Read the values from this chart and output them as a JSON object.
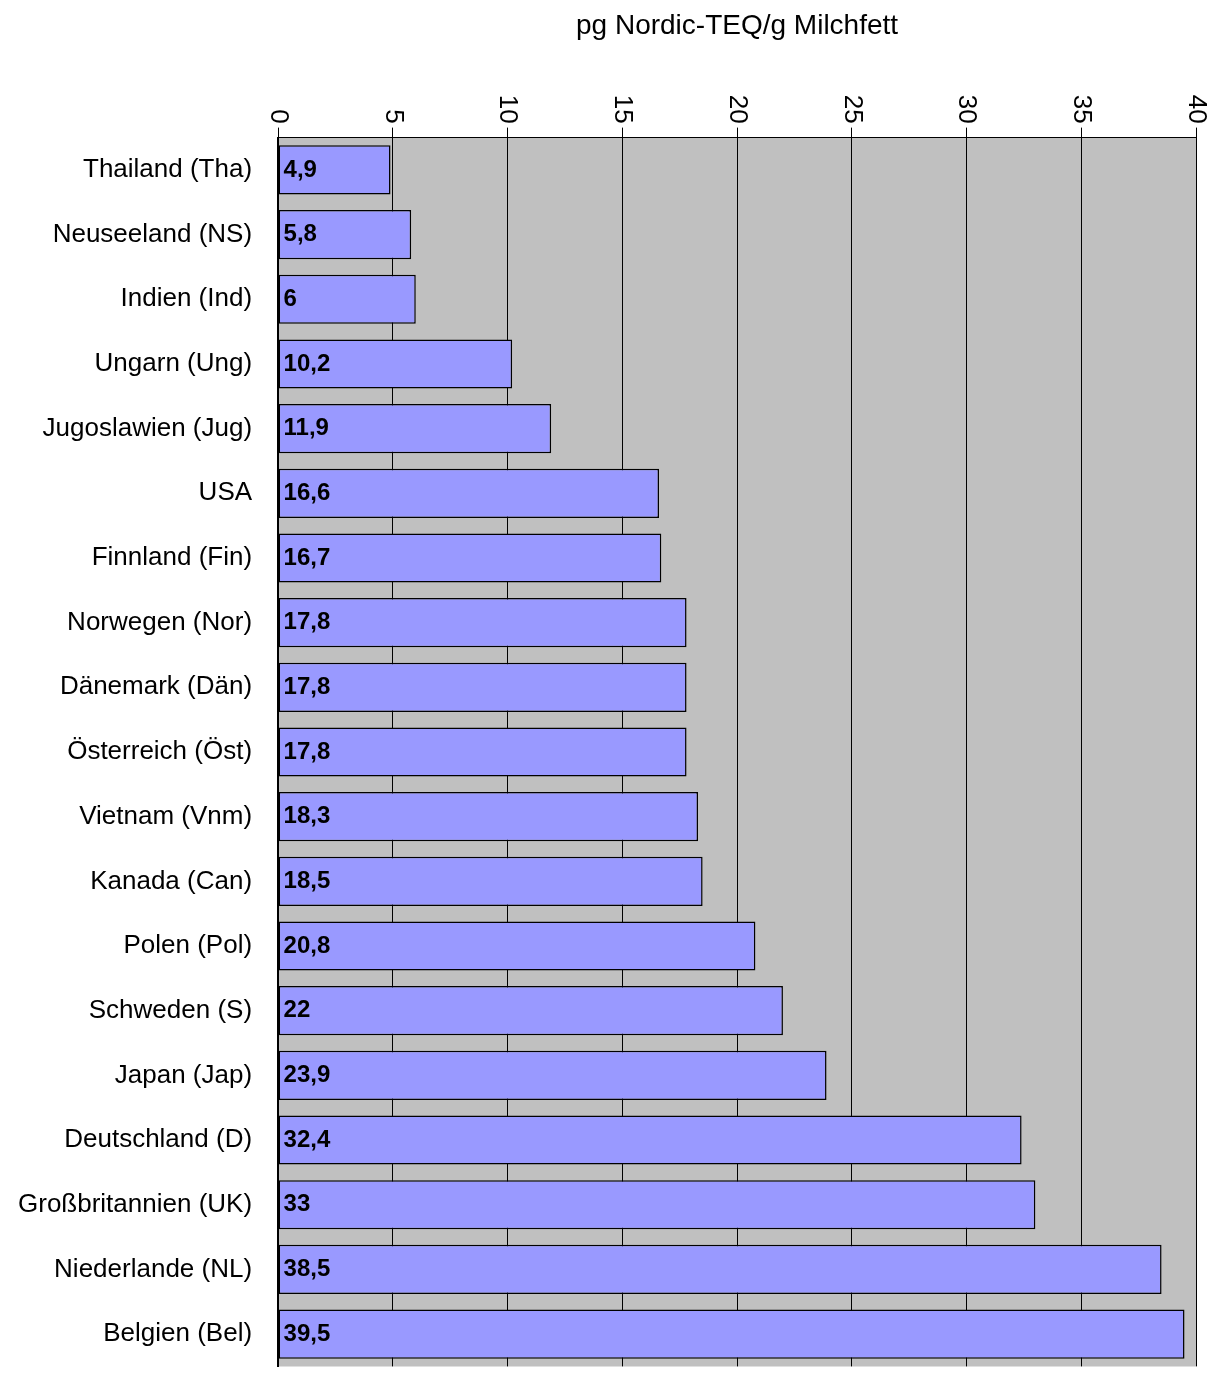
{
  "chart_data": {
    "type": "bar",
    "orientation": "horizontal",
    "xlabel": "pg Nordic-TEQ/g Milchfett",
    "categories": [
      "Thailand (Tha)",
      "Neuseeland (NS)",
      "Indien (Ind)",
      "Ungarn (Ung)",
      "Jugoslawien (Jug)",
      "USA",
      "Finnland (Fin)",
      "Norwegen (Nor)",
      "Dänemark (Dän)",
      "Österreich (Öst)",
      "Vietnam (Vnm)",
      "Kanada (Can)",
      "Polen (Pol)",
      "Schweden (S)",
      "Japan (Jap)",
      "Deutschland (D)",
      "Großbritannien (UK)",
      "Niederlande (NL)",
      "Belgien (Bel)"
    ],
    "values": [
      4.9,
      5.8,
      6,
      10.2,
      11.9,
      16.6,
      16.7,
      17.8,
      17.8,
      17.8,
      18.3,
      18.5,
      20.8,
      22,
      23.9,
      32.4,
      33,
      38.5,
      39.5
    ],
    "value_labels": [
      "4,9",
      "5,8",
      "6",
      "10,2",
      "11,9",
      "16,6",
      "16,7",
      "17,8",
      "17,8",
      "17,8",
      "18,3",
      "18,5",
      "20,8",
      "22",
      "23,9",
      "32,4",
      "33",
      "38,5",
      "39,5"
    ],
    "color": "#9999ff",
    "xlim": [
      0,
      40
    ],
    "xticks": [
      0,
      5,
      10,
      15,
      20,
      25,
      30,
      35,
      40
    ],
    "grid": "x",
    "legend": false
  }
}
